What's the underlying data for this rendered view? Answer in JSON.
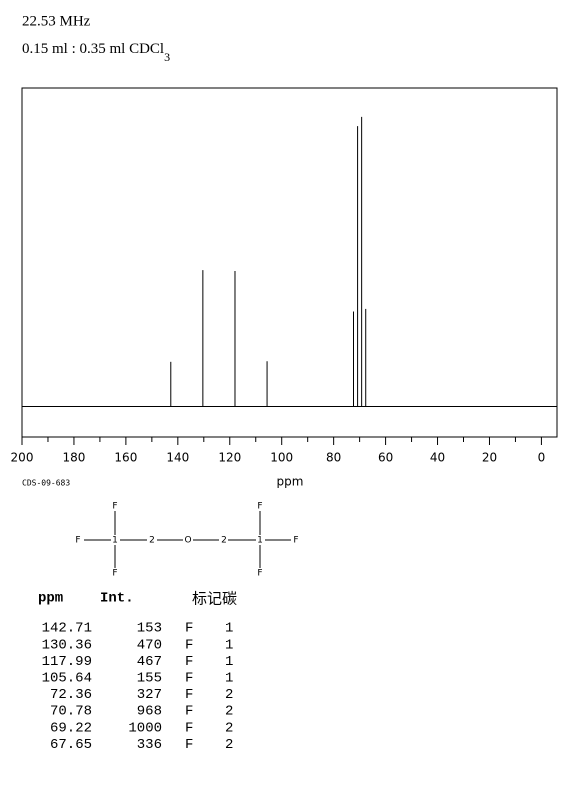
{
  "header": {
    "frequency": "22.53 MHz",
    "solvent": "0.15 ml : 0.35 ml CDCl",
    "solvent_subscript": "3"
  },
  "chart_data": {
    "type": "stem",
    "x_label": "ppm",
    "x": [
      142.71,
      130.36,
      117.99,
      105.64,
      72.36,
      70.78,
      69.22,
      67.65
    ],
    "values": [
      153,
      470,
      467,
      155,
      327,
      968,
      1000,
      336
    ],
    "color": "#000000",
    "xlim": [
      200,
      -6
    ],
    "ylim": [
      -107,
      1100
    ],
    "xticks": [
      200,
      180,
      160,
      140,
      120,
      100,
      80,
      60,
      40,
      20,
      0
    ],
    "xminorticks": [
      190,
      170,
      150,
      130,
      110,
      90,
      70,
      50,
      30,
      10
    ]
  },
  "code": "CDS-09-683",
  "structure": {
    "nodes": [
      "F",
      "F",
      "1",
      "2",
      "O",
      "2",
      "1",
      "F",
      "F",
      "F",
      "F"
    ]
  },
  "table": {
    "headers": [
      "ppm",
      "Int.",
      "标记碳"
    ],
    "atom": [
      "F",
      "F",
      "F",
      "F",
      "F",
      "F",
      "F",
      "F"
    ],
    "carbon": [
      "1",
      "1",
      "1",
      "1",
      "2",
      "2",
      "2",
      "2"
    ]
  }
}
